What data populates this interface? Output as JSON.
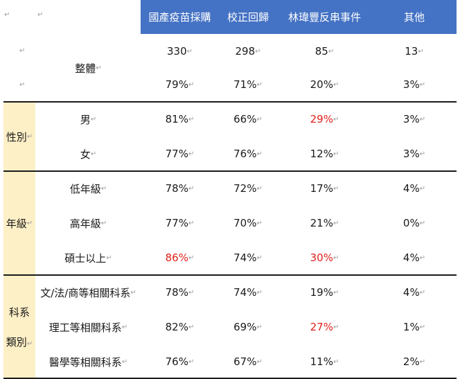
{
  "header": {
    "col1": "國產疫苗採購",
    "col2": "校正回歸",
    "col3": "林瑋豐反串事件",
    "col4": "其他",
    "mark": "↵"
  },
  "overall": {
    "label": "整體",
    "counts": [
      "330",
      "298",
      "85",
      "13"
    ],
    "percents": [
      "79%",
      "71%",
      "20%",
      "3%"
    ]
  },
  "groups": {
    "gender": {
      "label": "性別",
      "rows": [
        {
          "label": "男",
          "values": [
            "81%",
            "66%",
            "29%",
            "3%"
          ]
        },
        {
          "label": "女",
          "values": [
            "77%",
            "76%",
            "12%",
            "3%"
          ]
        }
      ]
    },
    "grade": {
      "label": "年級",
      "rows": [
        {
          "label": "低年級",
          "values": [
            "78%",
            "72%",
            "17%",
            "4%"
          ]
        },
        {
          "label": "高年級",
          "values": [
            "77%",
            "70%",
            "21%",
            "0%"
          ]
        },
        {
          "label": "碩士以上",
          "values": [
            "86%",
            "74%",
            "30%",
            "4%"
          ]
        }
      ]
    },
    "dept": {
      "label_line1": "科系",
      "label_line2": "類別",
      "rows": [
        {
          "label": "文/法/商等相關科系",
          "values": [
            "78%",
            "74%",
            "19%",
            "4%"
          ]
        },
        {
          "label": "理工等相關科系",
          "values": [
            "82%",
            "69%",
            "27%",
            "1%"
          ]
        },
        {
          "label": "醫學等相關科系",
          "values": [
            "76%",
            "67%",
            "11%",
            "2%"
          ]
        }
      ]
    }
  },
  "colors": {
    "header_bg": "#4472c4",
    "group_bg": "#fdefc6",
    "highlight": "#e0201b"
  }
}
